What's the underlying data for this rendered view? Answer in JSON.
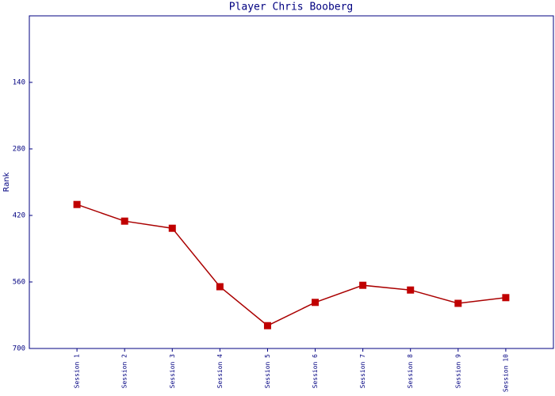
{
  "chart_data": {
    "type": "line",
    "title": "Player Chris Booberg",
    "y_label": "Rank",
    "categories": [
      "Session 1",
      "Session 2",
      "Session 3",
      "Session 4",
      "Session 5",
      "Session 6",
      "Session 7",
      "Session 8",
      "Session 9",
      "Session 10"
    ],
    "series": [
      {
        "name": "Rank",
        "color": "#aa0000",
        "marker_color": "#c00000",
        "values": [
          397,
          432,
          447,
          570,
          652,
          603,
          567,
          577,
          605,
          593
        ]
      }
    ],
    "ylim": [
      0,
      700
    ],
    "y_inverted": true,
    "yticks": [
      140,
      280,
      420,
      560,
      700
    ],
    "axis_color": "#000080"
  }
}
